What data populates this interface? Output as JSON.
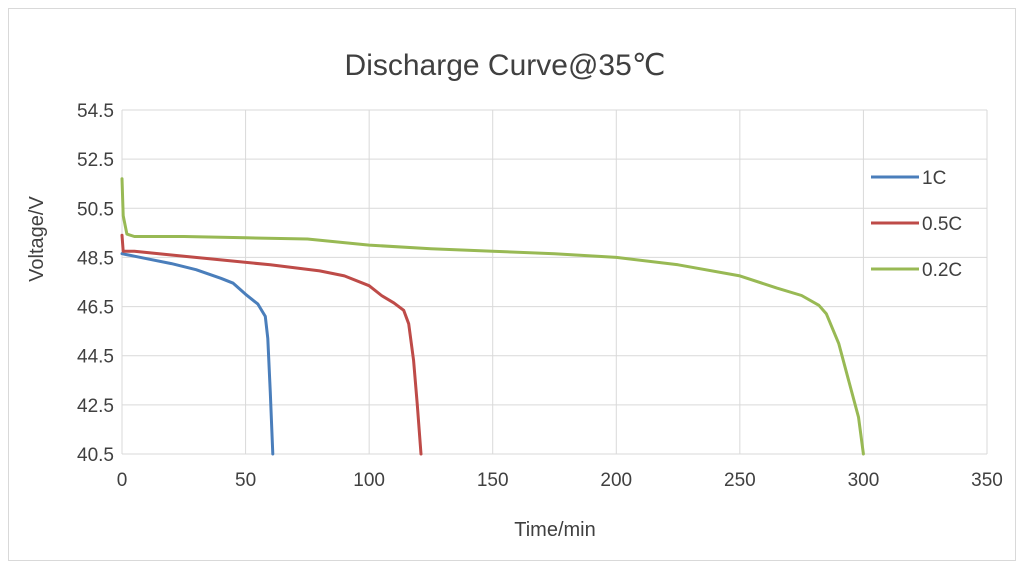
{
  "chart_data": {
    "type": "line",
    "title": "Discharge Curve@35℃",
    "xlabel": "Time/min",
    "ylabel": "Voltage/V",
    "xlim": [
      0,
      350
    ],
    "ylim": [
      40.5,
      54.5
    ],
    "x_ticks": [
      "0",
      "50",
      "100",
      "150",
      "200",
      "250",
      "300",
      "350"
    ],
    "y_ticks": [
      "40.5",
      "42.5",
      "44.5",
      "46.5",
      "48.5",
      "50.5",
      "52.5",
      "54.5"
    ],
    "grid": true,
    "legend_position": "right",
    "series": [
      {
        "name": "1C",
        "color": "#4a7ebb",
        "points": [
          [
            0,
            48.65
          ],
          [
            5,
            48.55
          ],
          [
            10,
            48.45
          ],
          [
            20,
            48.25
          ],
          [
            30,
            48.0
          ],
          [
            40,
            47.65
          ],
          [
            45,
            47.45
          ],
          [
            50,
            47.0
          ],
          [
            55,
            46.6
          ],
          [
            58,
            46.1
          ],
          [
            59,
            45.2
          ],
          [
            60,
            43.0
          ],
          [
            61,
            40.5
          ]
        ]
      },
      {
        "name": "0.5C",
        "color": "#be4b48",
        "points": [
          [
            0,
            49.4
          ],
          [
            0.5,
            48.75
          ],
          [
            5,
            48.75
          ],
          [
            20,
            48.6
          ],
          [
            40,
            48.4
          ],
          [
            60,
            48.2
          ],
          [
            80,
            47.95
          ],
          [
            90,
            47.75
          ],
          [
            100,
            47.35
          ],
          [
            105,
            46.95
          ],
          [
            110,
            46.65
          ],
          [
            114,
            46.35
          ],
          [
            116,
            45.8
          ],
          [
            118,
            44.3
          ],
          [
            119.5,
            42.5
          ],
          [
            121,
            40.5
          ]
        ]
      },
      {
        "name": "0.2C",
        "color": "#98b954",
        "points": [
          [
            0,
            51.7
          ],
          [
            0.5,
            50.2
          ],
          [
            2,
            49.45
          ],
          [
            5,
            49.35
          ],
          [
            25,
            49.35
          ],
          [
            50,
            49.3
          ],
          [
            75,
            49.25
          ],
          [
            100,
            49.0
          ],
          [
            125,
            48.85
          ],
          [
            150,
            48.75
          ],
          [
            175,
            48.65
          ],
          [
            200,
            48.5
          ],
          [
            225,
            48.2
          ],
          [
            250,
            47.75
          ],
          [
            265,
            47.25
          ],
          [
            275,
            46.95
          ],
          [
            282,
            46.55
          ],
          [
            285,
            46.2
          ],
          [
            290,
            45.0
          ],
          [
            294,
            43.5
          ],
          [
            298,
            42.0
          ],
          [
            300,
            40.5
          ]
        ]
      }
    ]
  }
}
